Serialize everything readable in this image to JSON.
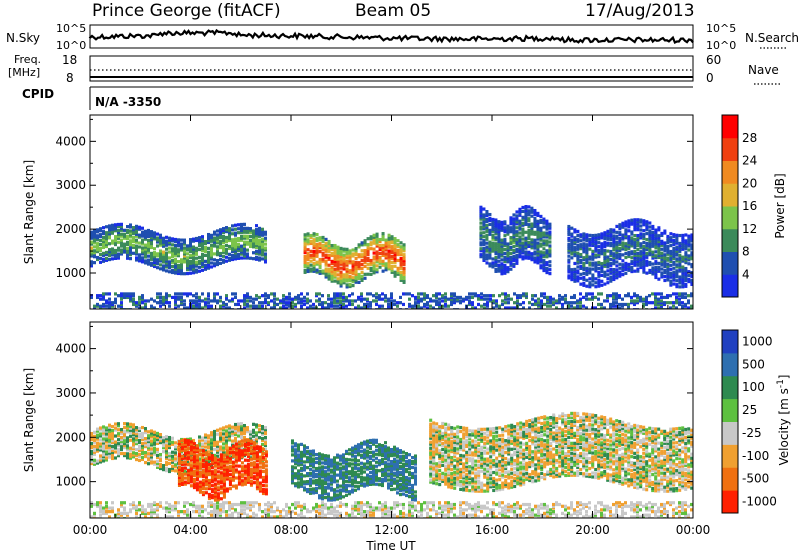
{
  "header": {
    "station": "Prince George (fitACF)",
    "beam": "Beam 05",
    "date": "17/Aug/2013"
  },
  "noise_panel": {
    "left_label": "N.Sky",
    "right_label": "N.Search",
    "left_ticks": [
      "10^5",
      "10^0"
    ],
    "right_ticks": [
      "10^5",
      "10^0"
    ]
  },
  "freq_panel": {
    "left_label_1": "Freq.",
    "left_label_2": "[MHz]",
    "right_label": "Nave",
    "left_ticks": [
      "18",
      "8"
    ],
    "right_ticks": [
      "60",
      "0"
    ]
  },
  "cpid_panel": {
    "label": "CPID",
    "value": "N/A -3350"
  },
  "chart_data": [
    {
      "type": "heatmap",
      "name": "power",
      "ylabel": "Slant Range [km]",
      "xlabel": "",
      "ylim": [
        180,
        4600
      ],
      "yticks": [
        1000,
        2000,
        3000,
        4000
      ],
      "colorbar_label": "Power [dB]",
      "colorbar_ticks": [
        4,
        8,
        12,
        16,
        20,
        24,
        28
      ],
      "colors": {
        "levels": [
          "#1a2ee6",
          "#1f4fb0",
          "#3b8a5a",
          "#7cc44a",
          "#e0b030",
          "#f08a20",
          "#f04010",
          "#ff0000"
        ]
      },
      "features": [
        {
          "time_h": [
            0,
            7.0
          ],
          "range_km": [
            1200,
            2000
          ],
          "level_db": 14
        },
        {
          "time_h": [
            8.5,
            12.5
          ],
          "range_km": [
            900,
            1800
          ],
          "level_db": 28
        },
        {
          "time_h": [
            15.5,
            18.3
          ],
          "range_km": [
            1200,
            2400
          ],
          "level_db": 10
        },
        {
          "time_h": [
            19.0,
            24.0
          ],
          "range_km": [
            900,
            2100
          ],
          "level_db": 8
        }
      ]
    },
    {
      "type": "heatmap",
      "name": "velocity",
      "ylabel": "Slant Range [km]",
      "xlabel": "Time UT",
      "ylim": [
        180,
        4600
      ],
      "yticks": [
        1000,
        2000,
        3000,
        4000
      ],
      "xticks": [
        "00:00",
        "04:00",
        "08:00",
        "12:00",
        "16:00",
        "20:00",
        "00:00"
      ],
      "colorbar_label": "Velocity [m s^-1]",
      "colorbar_ticks": [
        1000,
        500,
        100,
        25,
        -25,
        -100,
        -500,
        -1000
      ],
      "colors": {
        "levels": [
          "#2040c0",
          "#2e6fb0",
          "#2e8a50",
          "#5ec040",
          "#c8c8c8",
          "#f0a030",
          "#f07010",
          "#ff2000"
        ]
      },
      "features": [
        {
          "time_h": [
            0,
            7.0
          ],
          "range_km": [
            1400,
            2200
          ],
          "velocity": 0
        },
        {
          "time_h": [
            3.5,
            7.0
          ],
          "range_km": [
            800,
            1800
          ],
          "velocity": -500
        },
        {
          "time_h": [
            8.0,
            13.0
          ],
          "range_km": [
            800,
            1800
          ],
          "velocity": 300
        },
        {
          "time_h": [
            13.5,
            24.0
          ],
          "range_km": [
            1000,
            2400
          ],
          "velocity": 0
        }
      ]
    }
  ]
}
